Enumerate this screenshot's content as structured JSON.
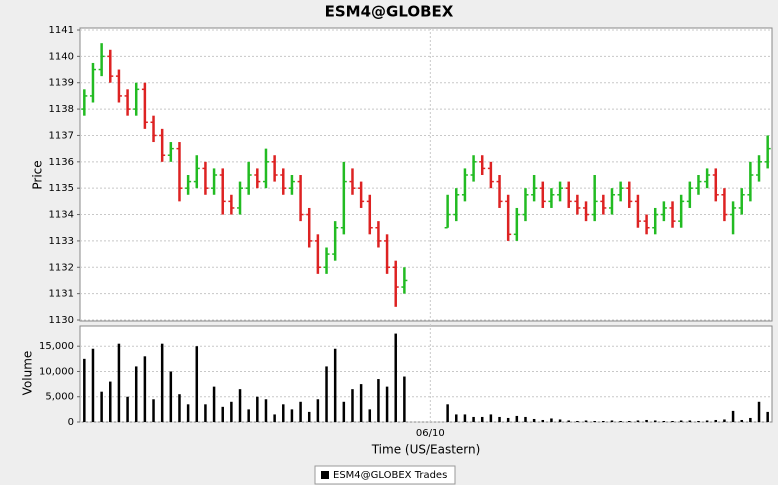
{
  "chart_data": [
    {
      "type": "ohlc",
      "title": "ESM4@GLOBEX",
      "y_label": "Price",
      "up_color": "#22bb22",
      "down_color": "#dd2222",
      "flat_color": "#000000",
      "ylim": [
        1130,
        1141
      ],
      "yticks": [
        1130,
        1131,
        1132,
        1133,
        1134,
        1135,
        1136,
        1137,
        1138,
        1139,
        1140,
        1141
      ],
      "grid": true,
      "series": [
        {
          "name": "ESM4@GLOBEX Trades",
          "color": "#000000",
          "open": [
            1138,
            1138.5,
            1139.5,
            1140,
            1139.25,
            1138.5,
            1138,
            1138.75,
            1137.5,
            1137,
            1136.25,
            1136.5,
            1135,
            1135.25,
            1135.75,
            1135,
            1135.5,
            1134.5,
            1134.25,
            1135,
            1135.5,
            1135.25,
            1136,
            1135.5,
            1135,
            1135.25,
            1134,
            1133,
            1132,
            1132.5,
            1133.5,
            1135.25,
            1135,
            1134.5,
            1133.5,
            1133,
            1132,
            1131.25,
            null,
            null,
            null,
            null,
            1133.5,
            1134,
            1134.75,
            1135.5,
            1136,
            1135.75,
            1135.25,
            1134.5,
            1133.25,
            1134,
            1134.75,
            1135,
            1134.5,
            1134.75,
            1135,
            1134.5,
            1134.25,
            1134,
            1134.5,
            1134.25,
            1134.75,
            1135,
            1134.5,
            1133.75,
            1133.5,
            1134,
            1134.25,
            1133.75,
            1134.5,
            1135,
            1135.25,
            1135.5,
            1134.75,
            1134,
            1134.25,
            1134.75,
            1135.5,
            1136
          ],
          "high": [
            1138.75,
            1139.75,
            1140.5,
            1140.25,
            1139.5,
            1138.75,
            1139,
            1139,
            1137.75,
            1137.25,
            1136.75,
            1136.75,
            1135.5,
            1136.25,
            1136,
            1135.75,
            1135.75,
            1134.75,
            1135.25,
            1136,
            1135.75,
            1136.5,
            1136.25,
            1135.75,
            1135.5,
            1135.5,
            1134.25,
            1133.25,
            1132.75,
            1133.75,
            1136,
            1135.75,
            1135.25,
            1134.75,
            1133.75,
            1133.25,
            1132.25,
            1132,
            null,
            null,
            null,
            null,
            1134.75,
            1135,
            1135.75,
            1136.25,
            1136.25,
            1136,
            1135.5,
            1134.75,
            1134.25,
            1135,
            1135.5,
            1135.25,
            1135,
            1135.25,
            1135.25,
            1134.75,
            1134.5,
            1135.5,
            1134.75,
            1135,
            1135.25,
            1135.25,
            1134.75,
            1134,
            1134.25,
            1134.5,
            1134.5,
            1134.75,
            1135.25,
            1135.5,
            1135.75,
            1135.75,
            1135,
            1134.5,
            1135,
            1136,
            1136.25,
            1137
          ],
          "low": [
            1137.75,
            1138.25,
            1139.25,
            1139,
            1138.25,
            1137.75,
            1137.75,
            1137.25,
            1136.75,
            1136,
            1136,
            1134.5,
            1134.75,
            1135,
            1134.75,
            1134.75,
            1134,
            1134,
            1134,
            1134.75,
            1135,
            1135,
            1135.25,
            1134.75,
            1134.75,
            1133.75,
            1132.75,
            1131.75,
            1131.75,
            1132.25,
            1133.25,
            1134.75,
            1134.25,
            1133.25,
            1132.75,
            1131.75,
            1130.5,
            1131,
            null,
            null,
            null,
            null,
            1133.5,
            1133.75,
            1134.5,
            1135.25,
            1135.5,
            1135,
            1134.25,
            1133,
            1133,
            1133.75,
            1134.5,
            1134.25,
            1134.25,
            1134.5,
            1134.25,
            1134,
            1133.75,
            1133.75,
            1134,
            1134,
            1134.5,
            1134.25,
            1133.5,
            1133.25,
            1133.25,
            1133.75,
            1133.5,
            1133.5,
            1134.25,
            1134.75,
            1135,
            1134.5,
            1133.75,
            1133.25,
            1134,
            1134.5,
            1135.25,
            1135.75
          ],
          "close": [
            1138.5,
            1139.5,
            1140,
            1139.25,
            1138.5,
            1138,
            1138.75,
            1137.5,
            1137,
            1136.25,
            1136.5,
            1135,
            1135.25,
            1135.75,
            1135,
            1135.5,
            1134.5,
            1134.25,
            1135,
            1135.5,
            1135.25,
            1136,
            1135.5,
            1135,
            1135.25,
            1134,
            1133,
            1132,
            1132.5,
            1133.5,
            1135.25,
            1135,
            1134.5,
            1133.5,
            1133,
            1132,
            1131.25,
            1131.5,
            null,
            null,
            null,
            null,
            1134,
            1134.75,
            1135.5,
            1136,
            1135.75,
            1135.25,
            1134.5,
            1133.25,
            1134,
            1134.75,
            1135,
            1134.5,
            1134.75,
            1135,
            1134.5,
            1134.25,
            1134,
            1134.5,
            1134.25,
            1134.75,
            1135,
            1134.5,
            1133.75,
            1133.5,
            1134,
            1134.25,
            1133.75,
            1134.5,
            1135,
            1135.25,
            1135.5,
            1134.75,
            1134,
            1134.25,
            1134.75,
            1135.5,
            1136,
            1136.5
          ]
        }
      ]
    },
    {
      "type": "bar",
      "y_label": "Volume",
      "x_label": "Time (US/Eastern)",
      "color": "#000000",
      "categories": [
        null,
        null,
        null,
        null,
        null,
        null,
        null,
        null,
        null,
        null,
        null,
        null,
        null,
        null,
        null,
        null,
        null,
        null,
        null,
        null,
        null,
        null,
        null,
        null,
        null,
        null,
        null,
        null,
        null,
        null,
        null,
        null,
        null,
        null,
        null,
        null,
        null,
        null,
        null,
        null,
        "06/10",
        null,
        null,
        null,
        null,
        null,
        null,
        null,
        null,
        null,
        null,
        null,
        null,
        null,
        null,
        null,
        null,
        null,
        null,
        null,
        null,
        null,
        null,
        null,
        null,
        null,
        null,
        null,
        null,
        null,
        null,
        null,
        null,
        null,
        null,
        null,
        null,
        null,
        null,
        null
      ],
      "values": [
        12500,
        14500,
        6000,
        8000,
        15500,
        5000,
        11000,
        13000,
        4500,
        15500,
        10000,
        5500,
        3500,
        15000,
        3500,
        7000,
        3000,
        4000,
        6500,
        2500,
        5000,
        4500,
        1500,
        3500,
        2500,
        4000,
        2000,
        4500,
        11000,
        14500,
        4000,
        6500,
        7500,
        2500,
        8500,
        7000,
        17500,
        9000,
        null,
        null,
        null,
        null,
        3500,
        1500,
        1500,
        1000,
        1000,
        1500,
        1000,
        800,
        1200,
        1000,
        600,
        400,
        700,
        500,
        300,
        200,
        300,
        200,
        200,
        300,
        200,
        200,
        300,
        400,
        300,
        200,
        200,
        300,
        300,
        200,
        300,
        400,
        500,
        2200,
        400,
        800,
        4000,
        2000
      ],
      "ylim": [
        0,
        19000
      ],
      "yticks": [
        0,
        {
          "value": 5000,
          "label": "5,000"
        },
        {
          "value": 10000,
          "label": "10,000"
        },
        {
          "value": 15000,
          "label": "15,000"
        }
      ],
      "grid": true
    }
  ]
}
